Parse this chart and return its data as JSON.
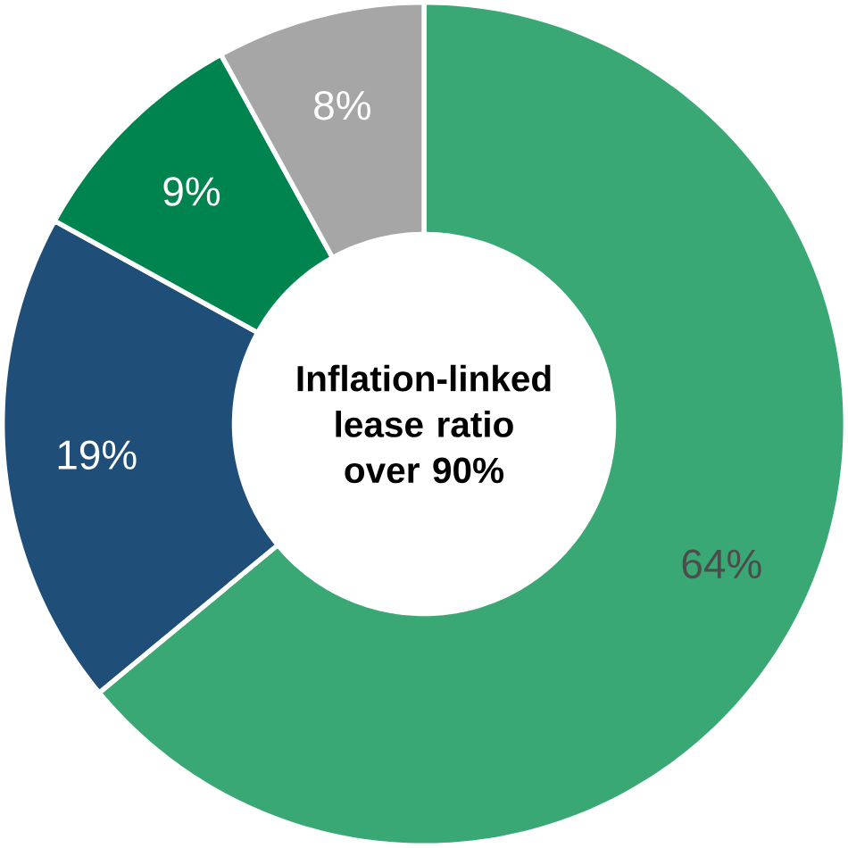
{
  "chart_data": {
    "type": "donut",
    "categories": [
      null,
      null,
      null,
      null
    ],
    "values": [
      64,
      19,
      9,
      8
    ],
    "colors": [
      "#3aa874",
      "#1f4e79",
      "#00844f",
      "#a6a6a6"
    ],
    "value_labels": [
      "64%",
      "19%",
      "9%",
      "8%"
    ],
    "annotations": [
      "Inflation-linked lease ratio over 90%"
    ]
  }
}
